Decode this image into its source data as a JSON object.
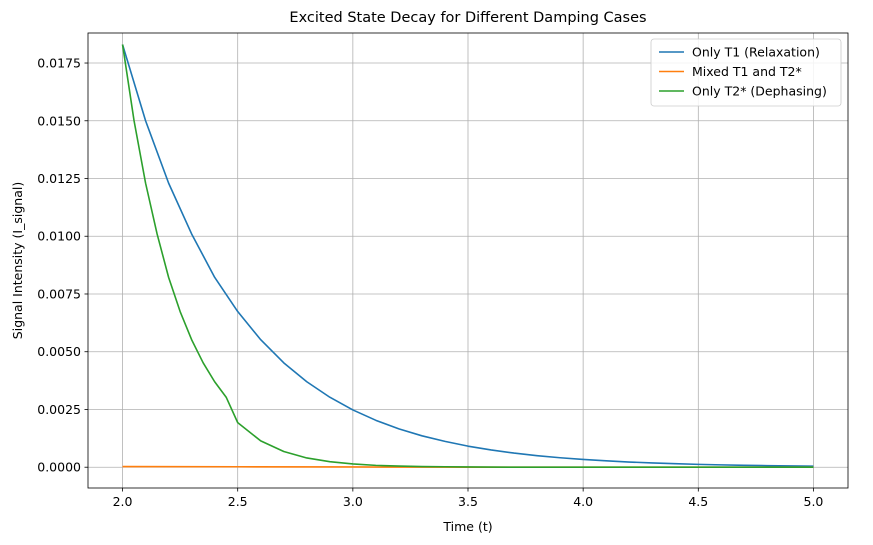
{
  "chart_data": {
    "type": "line",
    "title": "Excited State Decay for Different Damping Cases",
    "xlabel": "Time (t)",
    "ylabel": "Signal Intensity (I_signal)",
    "xlim": [
      1.85,
      5.15
    ],
    "ylim": [
      -0.0009,
      0.0188
    ],
    "x_ticks": [
      2.0,
      2.5,
      3.0,
      3.5,
      4.0,
      4.5,
      5.0
    ],
    "x_tick_labels": [
      "2.0",
      "2.5",
      "3.0",
      "3.5",
      "4.0",
      "4.5",
      "5.0"
    ],
    "y_ticks": [
      0.0,
      0.0025,
      0.005,
      0.0075,
      0.01,
      0.0125,
      0.015,
      0.0175
    ],
    "y_tick_labels": [
      "0.0000",
      "0.0025",
      "0.0050",
      "0.0075",
      "0.0100",
      "0.0125",
      "0.0150",
      "0.0175"
    ],
    "grid": true,
    "legend_position": "top-right",
    "series": [
      {
        "name": "Only T1 (Relaxation)",
        "color": "#1f77b4",
        "x": [
          2.0,
          2.1,
          2.2,
          2.3,
          2.4,
          2.5,
          2.6,
          2.7,
          2.8,
          2.9,
          3.0,
          3.1,
          3.2,
          3.3,
          3.4,
          3.5,
          3.6,
          3.7,
          3.8,
          3.9,
          4.0,
          4.1,
          4.2,
          4.3,
          4.4,
          4.5,
          4.6,
          4.7,
          4.8,
          4.9,
          5.0
        ],
        "values": [
          0.0183,
          0.015,
          0.0123,
          0.0101,
          0.00822,
          0.00674,
          0.00552,
          0.00452,
          0.0037,
          0.00303,
          0.00248,
          0.00203,
          0.00166,
          0.00136,
          0.00112,
          0.000912,
          0.000747,
          0.000611,
          0.0005,
          0.00041,
          0.000335,
          0.000275,
          0.000225,
          0.000184,
          0.000151,
          0.000123,
          0.000101,
          8.28e-05,
          6.78e-05,
          5.55e-05,
          4.54e-05
        ]
      },
      {
        "name": "Mixed T1 and T2*",
        "color": "#ff7f0e",
        "x": [
          2.0,
          2.5,
          3.0,
          3.5,
          4.0,
          4.5,
          5.0
        ],
        "values": [
          3e-05,
          2e-05,
          1e-05,
          0.0,
          0.0,
          0.0,
          0.0
        ]
      },
      {
        "name": "Only T2* (Dephasing)",
        "color": "#2ca02c",
        "x": [
          2.0,
          2.05,
          2.1,
          2.15,
          2.2,
          2.25,
          2.3,
          2.35,
          2.4,
          2.45,
          2.5,
          2.6,
          2.7,
          2.8,
          2.9,
          3.0,
          3.1,
          3.2,
          3.3,
          3.4,
          3.5,
          3.75,
          4.0,
          4.5,
          5.0
        ],
        "values": [
          0.0183,
          0.015,
          0.0123,
          0.0101,
          0.00822,
          0.00674,
          0.00552,
          0.00452,
          0.0037,
          0.00303,
          0.00193,
          0.00114,
          0.00068,
          0.0004,
          0.00024,
          0.00014,
          8e-05,
          5e-05,
          3e-05,
          2e-05,
          1e-05,
          0.0,
          0.0,
          0.0,
          0.0
        ]
      }
    ]
  }
}
